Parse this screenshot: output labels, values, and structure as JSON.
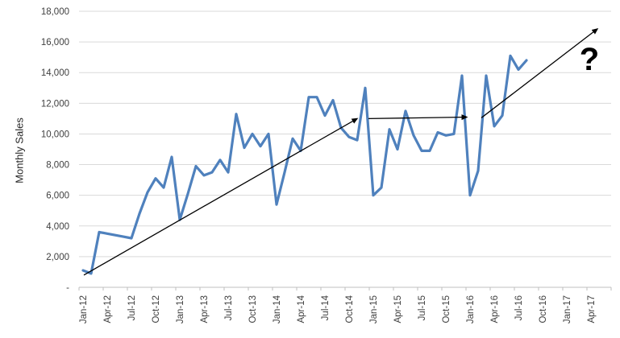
{
  "chart_data": {
    "type": "line",
    "title": "",
    "ylabel": "Monthly Sales",
    "ylim": [
      0,
      18000
    ],
    "y_tick_step": 2000,
    "y_ticks": [
      {
        "value": 0,
        "label": "-"
      },
      {
        "value": 2000,
        "label": "2,000"
      },
      {
        "value": 4000,
        "label": "4,000"
      },
      {
        "value": 6000,
        "label": "6,000"
      },
      {
        "value": 8000,
        "label": "8,000"
      },
      {
        "value": 10000,
        "label": "10,000"
      },
      {
        "value": 12000,
        "label": "12,000"
      },
      {
        "value": 14000,
        "label": "14,000"
      },
      {
        "value": 16000,
        "label": "16,000"
      },
      {
        "value": 18000,
        "label": "18,000"
      }
    ],
    "x_axis_tick_labels": [
      "Jan-12",
      "Apr-12",
      "Jul-12",
      "Oct-12",
      "Jan-13",
      "Apr-13",
      "Jul-13",
      "Oct-13",
      "Jan-14",
      "Apr-14",
      "Jul-14",
      "Oct-14",
      "Jan-15",
      "Apr-15",
      "Jul-15",
      "Oct-15",
      "Jan-16",
      "Apr-16",
      "Jul-16",
      "Oct-16",
      "Jan-17",
      "Apr-17"
    ],
    "x_tick_interval_months": 3,
    "x_total_months": 66,
    "grid": "horizontal",
    "legend_position": "none",
    "months": [
      "Jan-12",
      "Feb-12",
      "Mar-12",
      "Apr-12",
      "May-12",
      "Jun-12",
      "Jul-12",
      "Aug-12",
      "Sep-12",
      "Oct-12",
      "Nov-12",
      "Dec-12",
      "Jan-13",
      "Feb-13",
      "Mar-13",
      "Apr-13",
      "May-13",
      "Jun-13",
      "Jul-13",
      "Aug-13",
      "Sep-13",
      "Oct-13",
      "Nov-13",
      "Dec-13",
      "Jan-14",
      "Feb-14",
      "Mar-14",
      "Apr-14",
      "May-14",
      "Jun-14",
      "Jul-14",
      "Aug-14",
      "Sep-14",
      "Oct-14",
      "Nov-14",
      "Dec-14",
      "Jan-15",
      "Feb-15",
      "Mar-15",
      "Apr-15",
      "May-15",
      "Jun-15",
      "Jul-15",
      "Aug-15",
      "Sep-15",
      "Oct-15",
      "Nov-15",
      "Dec-15",
      "Jan-16",
      "Feb-16",
      "Mar-16",
      "Apr-16",
      "May-16",
      "Jun-16",
      "Jul-16",
      "Aug-16"
    ],
    "values": [
      1100,
      900,
      3600,
      3500,
      3400,
      3300,
      3200,
      4800,
      6200,
      7100,
      6500,
      8500,
      4400,
      6100,
      7900,
      7300,
      7500,
      8300,
      7500,
      11300,
      9100,
      10000,
      9200,
      10000,
      5400,
      7500,
      9700,
      8900,
      12400,
      12400,
      11200,
      12200,
      10400,
      9800,
      9600,
      13000,
      6000,
      6500,
      10300,
      9000,
      11500,
      9900,
      8900,
      8900,
      10100,
      9900,
      10000,
      13800,
      6000,
      7600,
      13800,
      10500,
      11200,
      15100,
      14200,
      14800
    ],
    "series_name": "Monthly Sales",
    "colors": {
      "series_line": "#4F81BD",
      "gridline": "#D9D9D9",
      "axis_line": "#BFBFBF",
      "tick_text": "#3F3F3F",
      "annotation": "#000000"
    },
    "annotations": {
      "arrows": [
        {
          "name": "trend-arrow-past",
          "from_month": 0.1,
          "from_value": 800,
          "to_month": 34,
          "to_value": 11000
        },
        {
          "name": "trend-arrow-plateau",
          "from_month": 35.4,
          "from_value": 11000,
          "to_month": 47.6,
          "to_value": 11100
        },
        {
          "name": "trend-arrow-forecast",
          "from_month": 49.4,
          "from_value": 11050,
          "to_month": 63.8,
          "to_value": 16850
        }
      ],
      "question_mark": {
        "text": "?",
        "month": 62.8,
        "value": 14900
      }
    }
  }
}
